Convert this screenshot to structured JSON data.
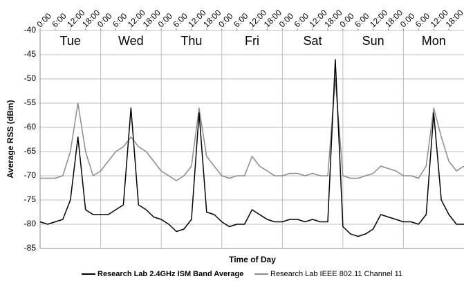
{
  "chart_data": {
    "type": "line",
    "xlabel": "Time of Day",
    "ylabel": "Average RSS (dBm)",
    "days": [
      "Tue",
      "Wed",
      "Thu",
      "Fri",
      "Sat",
      "Sun",
      "Mon"
    ],
    "xlim": [
      0,
      168
    ],
    "xticks": [
      {
        "value": 0,
        "label": "0:00"
      },
      {
        "value": 6,
        "label": "6:00"
      },
      {
        "value": 12,
        "label": "12:00"
      },
      {
        "value": 18,
        "label": "18:00"
      },
      {
        "value": 24,
        "label": "0:00"
      },
      {
        "value": 30,
        "label": "6:00"
      },
      {
        "value": 36,
        "label": "12:00"
      },
      {
        "value": 42,
        "label": "18:00"
      },
      {
        "value": 48,
        "label": "0:00"
      },
      {
        "value": 54,
        "label": "6:00"
      },
      {
        "value": 60,
        "label": "12:00"
      },
      {
        "value": 66,
        "label": "18:00"
      },
      {
        "value": 72,
        "label": "0:00"
      },
      {
        "value": 78,
        "label": "6:00"
      },
      {
        "value": 84,
        "label": "12:00"
      },
      {
        "value": 90,
        "label": "18:00"
      },
      {
        "value": 96,
        "label": "0:00"
      },
      {
        "value": 102,
        "label": "6:00"
      },
      {
        "value": 108,
        "label": "12:00"
      },
      {
        "value": 114,
        "label": "18:00"
      },
      {
        "value": 120,
        "label": "0:00"
      },
      {
        "value": 126,
        "label": "6:00"
      },
      {
        "value": 132,
        "label": "12:00"
      },
      {
        "value": 138,
        "label": "18:00"
      },
      {
        "value": 144,
        "label": "0:00"
      },
      {
        "value": 150,
        "label": "6:00"
      },
      {
        "value": 156,
        "label": "12:00"
      },
      {
        "value": 162,
        "label": "18:00"
      }
    ],
    "ylim": [
      -85,
      -40
    ],
    "yticks": [
      -40,
      -45,
      -50,
      -55,
      -60,
      -65,
      -70,
      -75,
      -80,
      -85
    ],
    "grid": true,
    "legend": "bottom",
    "x": [
      0,
      3,
      6,
      9,
      12,
      15,
      18,
      21,
      24,
      27,
      30,
      33,
      36,
      39,
      42,
      45,
      48,
      51,
      54,
      57,
      60,
      63,
      66,
      69,
      72,
      75,
      78,
      81,
      84,
      87,
      90,
      93,
      96,
      99,
      102,
      105,
      108,
      111,
      114,
      117,
      120,
      123,
      126,
      129,
      132,
      135,
      138,
      141,
      144,
      147,
      150,
      153,
      156,
      159,
      162,
      165,
      168
    ],
    "series": [
      {
        "name": "Research Lab 2.4GHz ISM Band Average",
        "color": "#000000",
        "values": [
          -79.5,
          -80,
          -79.5,
          -79,
          -75,
          -62,
          -77,
          -78,
          -78,
          -78,
          -77,
          -76,
          -56,
          -76,
          -77,
          -78.5,
          -79,
          -80,
          -81.5,
          -81,
          -79,
          -57,
          -77.5,
          -78,
          -79.5,
          -80.5,
          -80,
          -80,
          -77,
          -78,
          -79,
          -79.5,
          -79.5,
          -79,
          -79,
          -79.5,
          -79,
          -79.5,
          -79.5,
          -46,
          -80.5,
          -82,
          -82.5,
          -82,
          -81,
          -78,
          -78.5,
          -79,
          -79.5,
          -79.5,
          -80,
          -78,
          -57,
          -75,
          -78,
          -80,
          -80
        ]
      },
      {
        "name": "Research Lab IEEE 802.11 Channel 11",
        "color": "#8c8c8c",
        "values": [
          -70.5,
          -70.5,
          -70.5,
          -70,
          -65,
          -55,
          -65,
          -70,
          -69,
          -67,
          -65,
          -64,
          -62,
          -64,
          -65,
          -67,
          -69,
          -70,
          -71,
          -70,
          -68,
          -56,
          -66,
          -68,
          -70,
          -70.5,
          -70,
          -70,
          -66,
          -68,
          -69,
          -70,
          -70,
          -69.5,
          -69.5,
          -70,
          -69.5,
          -70,
          -70,
          -50,
          -70,
          -70.5,
          -70.5,
          -70,
          -69.5,
          -68,
          -68.5,
          -69,
          -70,
          -70,
          -70.5,
          -68,
          -56,
          -62,
          -67,
          -69,
          -68
        ]
      }
    ]
  }
}
